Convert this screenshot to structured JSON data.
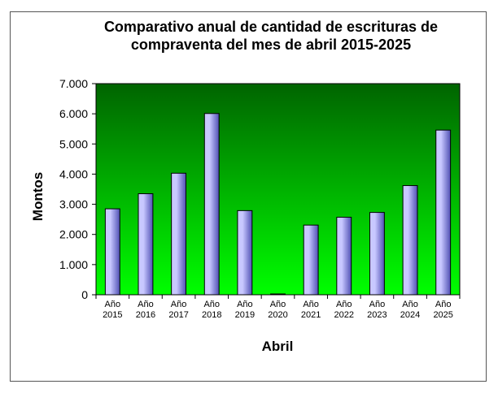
{
  "chart_data": {
    "type": "bar",
    "title": "Comparativo anual de cantidad de escrituras de compraventa del mes de abril 2015-2025",
    "xlabel": "Abril",
    "ylabel": "Montos",
    "categories": [
      [
        "Año",
        "2015"
      ],
      [
        "Año",
        "2016"
      ],
      [
        "Año",
        "2017"
      ],
      [
        "Año",
        "2018"
      ],
      [
        "Año",
        "2019"
      ],
      [
        "Año",
        "2020"
      ],
      [
        "Año",
        "2021"
      ],
      [
        "Año",
        "2022"
      ],
      [
        "Año",
        "2023"
      ],
      [
        "Año",
        "2024"
      ],
      [
        "Año",
        "2025"
      ]
    ],
    "values": [
      2850,
      3350,
      4030,
      6010,
      2790,
      20,
      2310,
      2570,
      2730,
      3620,
      5460
    ],
    "ylim": [
      0,
      7000
    ],
    "yticks": [
      0,
      1000,
      2000,
      3000,
      4000,
      5000,
      6000,
      7000
    ],
    "ytick_labels": [
      "0",
      "1.000",
      "2.000",
      "3.000",
      "4.000",
      "5.000",
      "6.000",
      "7.000"
    ],
    "grid": false,
    "legend": "none",
    "colors": {
      "plot_top": "#006400",
      "plot_bottom": "#00ff00",
      "bar_light": "#c8c8ff",
      "bar_dark": "#5050b4",
      "bar_edge": "#000000"
    }
  }
}
